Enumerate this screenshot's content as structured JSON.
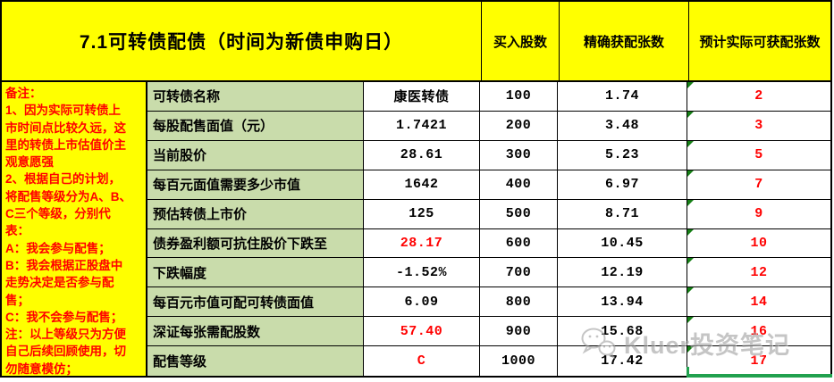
{
  "title": "7.1可转债配债（时间为新债申购日）",
  "header": {
    "buy_shares": "买入股数",
    "precise_allocation": "精确获配张数",
    "estimated_allocation": "预计实际可获配张数"
  },
  "notes": {
    "lines": [
      "备注：",
      "1、因为实际可转债上",
      "市时间点比较久远，这",
      "里的转债上市估值价主",
      "观意愿强",
      "2、根据自己的计划，",
      "将配售等级分为A、B、",
      "C三个等级，分别代",
      "表：",
      "A：我会参与配售；",
      "B：我会根据正股盘中",
      "走势决定是否参与配",
      "售；",
      "C：我不会参与配售；",
      "注：以上等级只为方便",
      "自己后续回顾使用，切",
      "勿随意模仿；"
    ]
  },
  "info_rows": [
    {
      "label": "可转债名称",
      "value": "康医转债",
      "red": false
    },
    {
      "label": "每股配售面值（元）",
      "value": "1.7421",
      "red": false
    },
    {
      "label": "当前股价",
      "value": "28.61",
      "red": false
    },
    {
      "label": "每百元面值需要多少市值",
      "value": "1642",
      "red": false
    },
    {
      "label": "预估转债上市价",
      "value": "125",
      "red": false
    },
    {
      "label": "债券盈利额可抗住股价下跌至",
      "value": "28.17",
      "red": true
    },
    {
      "label": "下跌幅度",
      "value": "-1.52%",
      "red": false
    },
    {
      "label": "每百元市值可配可转债面值",
      "value": "6.09",
      "red": false
    },
    {
      "label": "深证每张需配股数",
      "value": "57.40",
      "red": true
    },
    {
      "label": "配售等级",
      "value": "C",
      "red": true
    }
  ],
  "allocation_rows": [
    {
      "shares": "100",
      "precise": "1.74",
      "estimated": "2"
    },
    {
      "shares": "200",
      "precise": "3.48",
      "estimated": "3"
    },
    {
      "shares": "300",
      "precise": "5.23",
      "estimated": "5"
    },
    {
      "shares": "400",
      "precise": "6.97",
      "estimated": "7"
    },
    {
      "shares": "500",
      "precise": "8.71",
      "estimated": "9"
    },
    {
      "shares": "600",
      "precise": "10.45",
      "estimated": "10"
    },
    {
      "shares": "700",
      "precise": "12.19",
      "estimated": "12"
    },
    {
      "shares": "800",
      "precise": "13.94",
      "estimated": "14"
    },
    {
      "shares": "900",
      "precise": "15.68",
      "estimated": "16"
    },
    {
      "shares": "1000",
      "precise": "17.42",
      "estimated": "17"
    }
  ],
  "watermark": {
    "text": "Kluer投资笔记",
    "icon": "wechat-icon"
  },
  "colors": {
    "yellow": "#ffff00",
    "label_green": "#c9dcab",
    "red": "#ff0000",
    "border_black": "#000000",
    "triangle_green": "#178017",
    "selection_green": "#21a14e",
    "watermark_gray": "#a3a3a3"
  }
}
